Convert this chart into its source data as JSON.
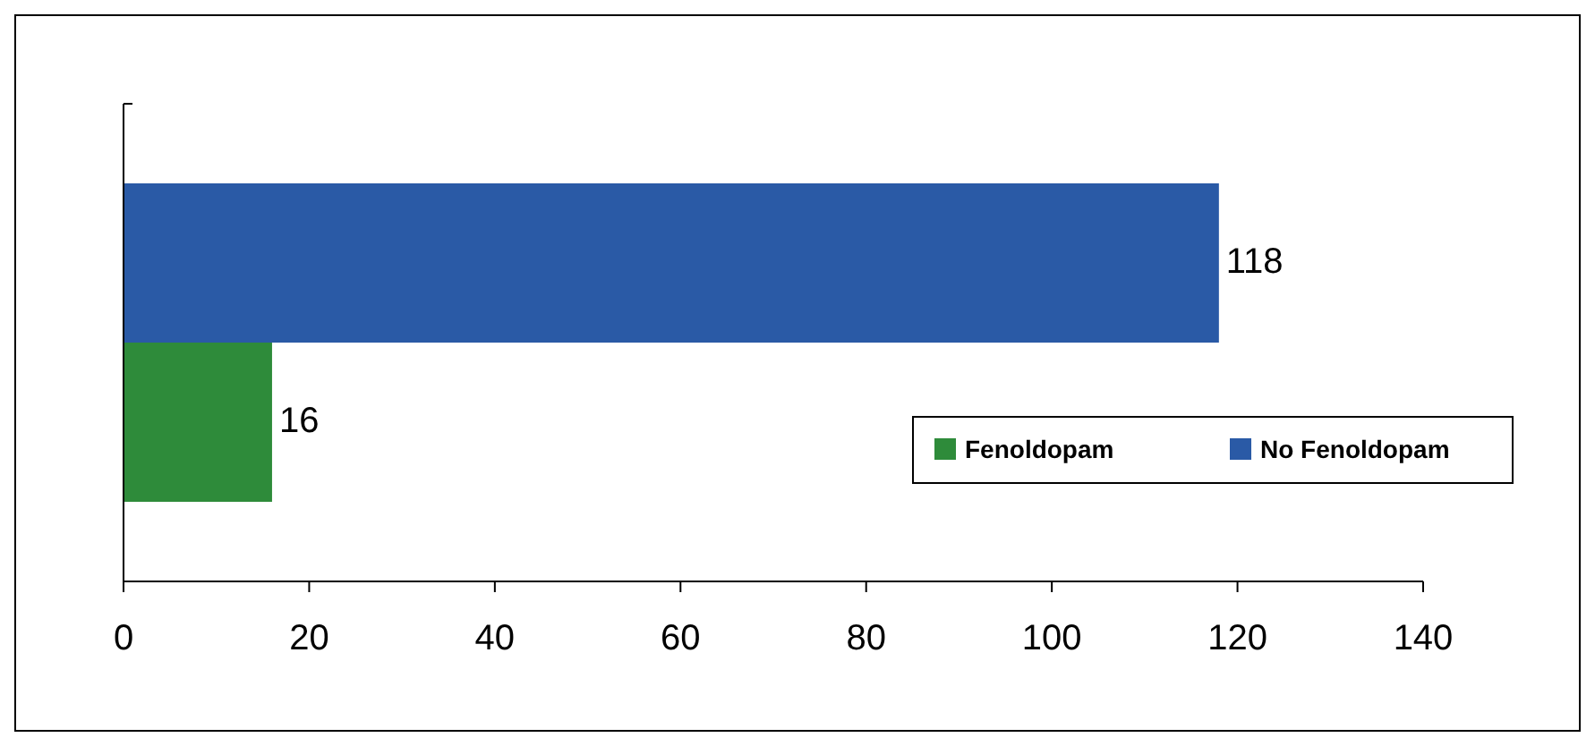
{
  "chart_data": {
    "type": "bar",
    "orientation": "horizontal",
    "categories": [
      null
    ],
    "series": [
      {
        "name": "Fenoldopam",
        "color": "#2e8b3a",
        "values": [
          16
        ]
      },
      {
        "name": "No Fenoldopam",
        "color": "#2a5aa6",
        "values": [
          118
        ]
      }
    ],
    "xlim": [
      0,
      140
    ],
    "xticks": [
      0,
      20,
      40,
      60,
      80,
      100,
      120,
      140
    ],
    "data_labels": true,
    "grid": false,
    "legend": "right"
  }
}
